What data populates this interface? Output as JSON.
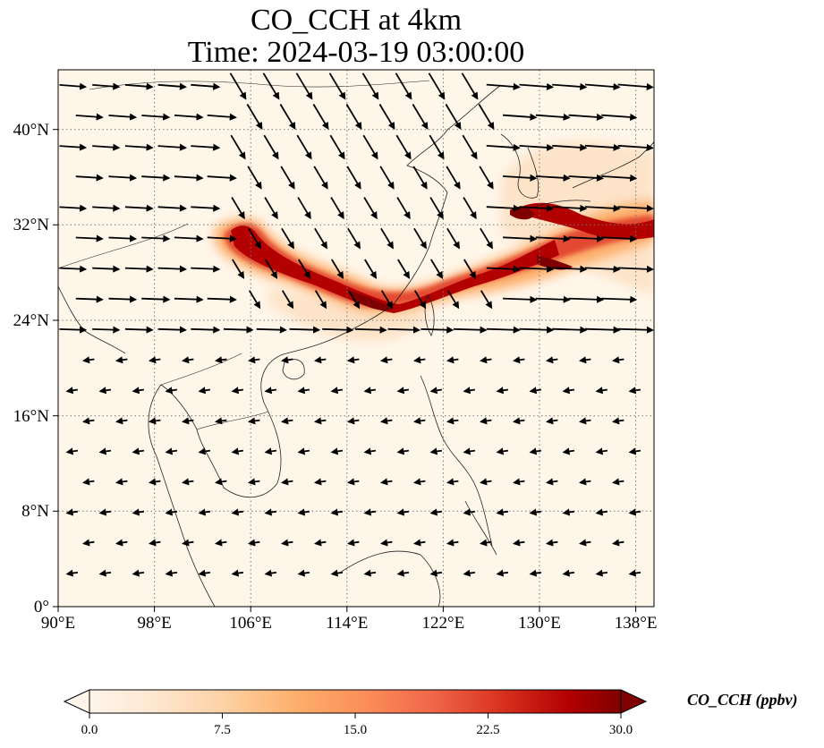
{
  "title": {
    "line1": "CO_CCH at 4km",
    "line2": "Time: 2024-03-19 03:00:00"
  },
  "map": {
    "projection": "PlateCarree",
    "lon_range": [
      90,
      139.5
    ],
    "lat_range": [
      0,
      45
    ],
    "x_ticks": [
      "90°E",
      "98°E",
      "106°E",
      "114°E",
      "122°E",
      "130°E",
      "138°E"
    ],
    "y_ticks": [
      "0°",
      "8°N",
      "16°N",
      "24°N",
      "32°N",
      "40°N"
    ],
    "gridlines": "dotted",
    "background_color": "#fff6ea",
    "overlay": "wind vectors (quiver)",
    "coastlines": true,
    "borders": true
  },
  "colorbar": {
    "label": "CO_CCH (ppbv)",
    "ticks": [
      "0.0",
      "7.5",
      "15.0",
      "22.5",
      "30.0"
    ],
    "range": [
      0,
      30
    ],
    "extend": "both",
    "colormap": [
      "#fff5eb",
      "#fee6ce",
      "#fdd0a2",
      "#fdae6b",
      "#fd8d3c",
      "#f16913",
      "#d94801",
      "#a63603",
      "#7f0000"
    ]
  }
}
